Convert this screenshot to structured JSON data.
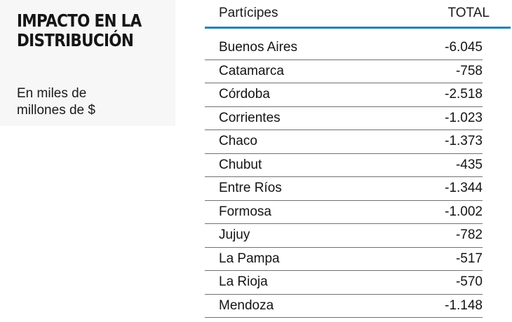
{
  "title_line1": "IMPACTO EN LA",
  "title_line2": "DISTRIBUCIÓN",
  "subtitle_line1": "En miles de",
  "subtitle_line2": "millones de $",
  "table": {
    "headers": {
      "name": "Partícipes",
      "total": "TOTAL"
    },
    "rows": [
      {
        "name": "Buenos Aires",
        "total": "-6.045"
      },
      {
        "name": "Catamarca",
        "total": "-758"
      },
      {
        "name": "Córdoba",
        "total": "-2.518"
      },
      {
        "name": "Corrientes",
        "total": "-1.023"
      },
      {
        "name": "Chaco",
        "total": "-1.373"
      },
      {
        "name": "Chubut",
        "total": "-435"
      },
      {
        "name": "Entre Ríos",
        "total": "-1.344"
      },
      {
        "name": "Formosa",
        "total": "-1.002"
      },
      {
        "name": "Jujuy",
        "total": "-782"
      },
      {
        "name": "La Pampa",
        "total": "-517"
      },
      {
        "name": "La Rioja",
        "total": "-570"
      },
      {
        "name": "Mendoza",
        "total": "-1.148"
      }
    ]
  },
  "colors": {
    "header_rule": "#1e86b4",
    "row_rule": "#707070",
    "text": "#1a1a1a",
    "left_panel_bg": "#f7f7f7"
  },
  "chart_data": {
    "type": "table",
    "title": "IMPACTO EN LA DISTRIBUCIÓN",
    "subtitle": "En miles de millones de $",
    "columns": [
      "Partícipes",
      "TOTAL"
    ],
    "categories": [
      "Buenos Aires",
      "Catamarca",
      "Córdoba",
      "Corrientes",
      "Chaco",
      "Chubut",
      "Entre Ríos",
      "Formosa",
      "Jujuy",
      "La Pampa",
      "La Rioja",
      "Mendoza"
    ],
    "values": [
      -6045,
      -758,
      -2518,
      -1023,
      -1373,
      -435,
      -1344,
      -1002,
      -782,
      -517,
      -570,
      -1148
    ],
    "unit": "miles de millones de $"
  }
}
